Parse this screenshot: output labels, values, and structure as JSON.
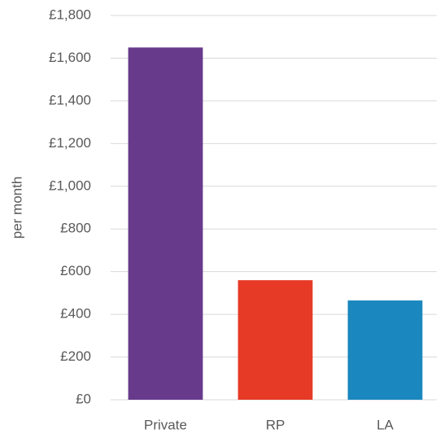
{
  "chart_data": {
    "type": "bar",
    "y_label": "per month",
    "categories": [
      "Private",
      "RP",
      "LA"
    ],
    "values": [
      1650,
      560,
      465
    ],
    "colors": [
      "#673a8c",
      "#e63a26",
      "#1a87be"
    ],
    "ylim": [
      0,
      1800
    ],
    "yticks": [
      {
        "value": 0,
        "label": "£0"
      },
      {
        "value": 200,
        "label": "£200"
      },
      {
        "value": 400,
        "label": "£400"
      },
      {
        "value": 600,
        "label": "£600"
      },
      {
        "value": 800,
        "label": "£800"
      },
      {
        "value": 1000,
        "label": "£1,000"
      },
      {
        "value": 1200,
        "label": "£1,200"
      },
      {
        "value": 1400,
        "label": "£1,400"
      },
      {
        "value": 1600,
        "label": "£1,600"
      },
      {
        "value": 1800,
        "label": "£1,800"
      }
    ],
    "grid": true
  }
}
